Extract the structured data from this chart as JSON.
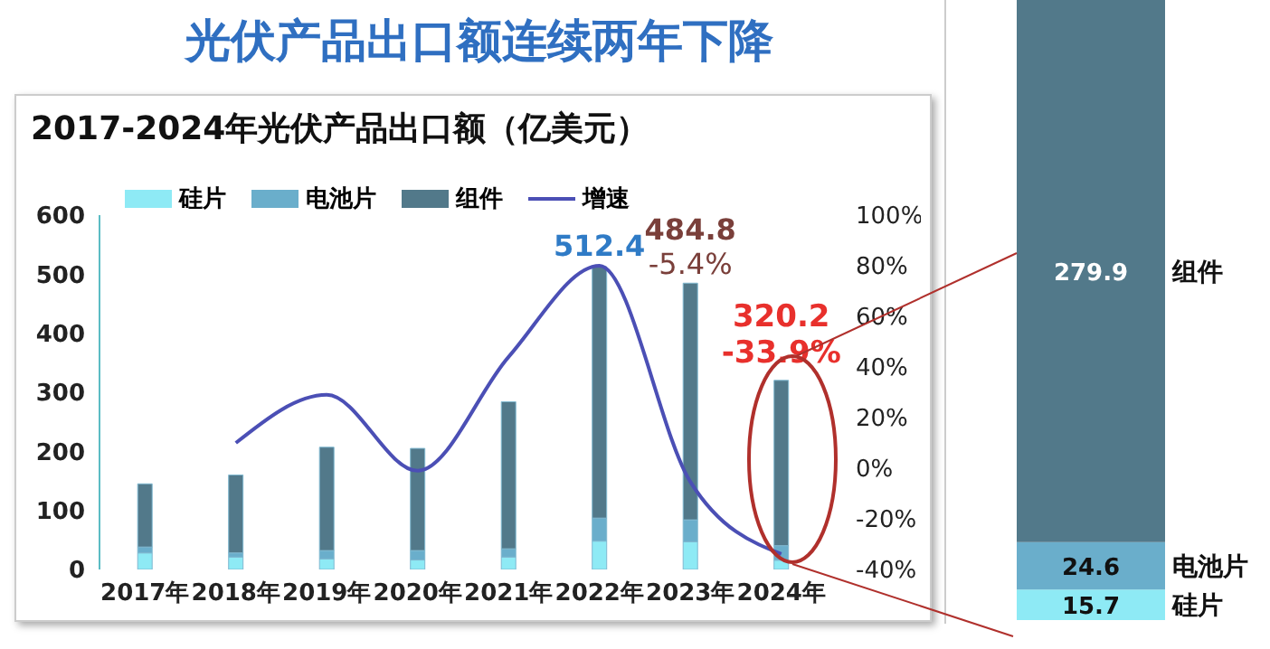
{
  "chart_data": [
    {
      "type": "bar",
      "title": "光伏产品出口额连续两年下降",
      "subtitle": "2017-2024年光伏产品出口额（亿美元）",
      "categories": [
        "2017年",
        "2018年",
        "2019年",
        "2020年",
        "2021年",
        "2022年",
        "2023年",
        "2024年"
      ],
      "stacked": true,
      "series": [
        {
          "name": "硅片",
          "color": "#8eeaf5",
          "values": [
            28,
            21,
            18,
            16,
            21,
            48,
            47,
            15.7
          ]
        },
        {
          "name": "电池片",
          "color": "#6aaecb",
          "values": [
            10,
            7,
            14,
            16,
            14,
            39,
            37,
            24.6
          ]
        },
        {
          "name": "组件",
          "color": "#52798a",
          "values": [
            107,
            132,
            175,
            173,
            249,
            425.4,
            400.8,
            279.9
          ]
        },
        {
          "name": "增速",
          "type": "line",
          "axis": "y2",
          "color": "#4b4fb5",
          "values": [
            null,
            10,
            29,
            -1,
            44,
            80,
            -5.4,
            -33.9
          ]
        }
      ],
      "annotations": [
        "-5.4%",
        "-33.9%"
      ],
      "totals": [
        null,
        null,
        null,
        null,
        null,
        "512.4",
        "484.8",
        "320.2"
      ],
      "ylim": [
        0,
        600
      ],
      "yticks": [
        0,
        100,
        200,
        300,
        400,
        500,
        600
      ],
      "y2lim": [
        -40,
        100
      ],
      "y2ticks": [
        {
          "value": -40,
          "label": "-40%"
        },
        {
          "value": -20,
          "label": "-20%"
        },
        {
          "value": 0,
          "label": "0%"
        },
        {
          "value": 20,
          "label": "20%"
        },
        {
          "value": 40,
          "label": "40%"
        },
        {
          "value": 60,
          "label": "60%"
        },
        {
          "value": 80,
          "label": "80%"
        },
        {
          "value": 100,
          "label": "100%"
        }
      ],
      "legend": "top",
      "grid": false,
      "marker": "none"
    },
    {
      "type": "bar",
      "categories": [
        null
      ],
      "stacked": true,
      "data_labels": true,
      "series": [
        {
          "name": "硅片",
          "color": "#8eeaf5",
          "values": [
            15.7
          ]
        },
        {
          "name": "电池片",
          "color": "#6aaecb",
          "values": [
            24.6
          ]
        },
        {
          "name": "组件",
          "color": "#52798a",
          "values": [
            279.9
          ]
        }
      ]
    }
  ]
}
